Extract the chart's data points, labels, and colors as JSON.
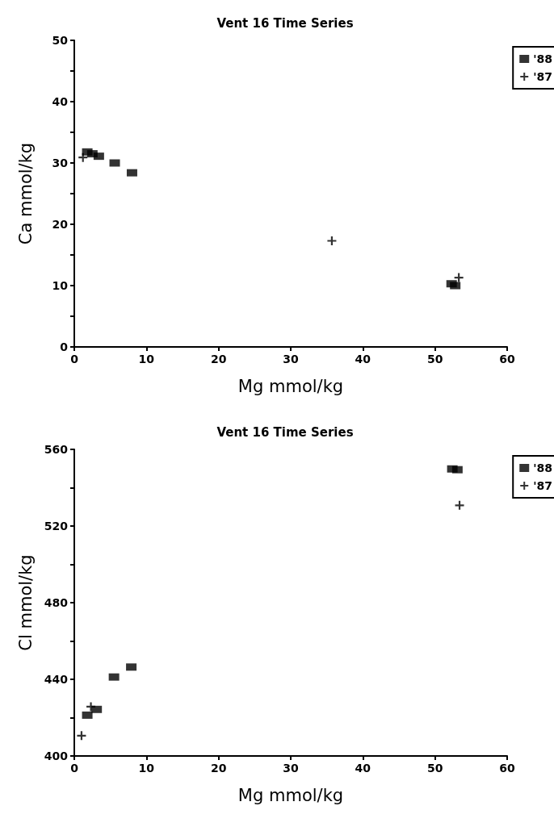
{
  "chart_data": [
    {
      "type": "scatter",
      "title": "Vent 16 Time Series",
      "xlabel": "Mg mmol/kg",
      "ylabel": "Ca mmol/kg",
      "xlim": [
        0,
        60
      ],
      "xticks": [
        0,
        10,
        20,
        30,
        40,
        50,
        60
      ],
      "ylim": [
        0,
        50
      ],
      "yticks": [
        0,
        {
          "value": 5,
          "label": null
        },
        10,
        {
          "value": 15,
          "label": null
        },
        20,
        {
          "value": 25,
          "label": null
        },
        30,
        {
          "value": 35,
          "label": null
        },
        40,
        {
          "value": 45,
          "label": null
        },
        50
      ],
      "legend": "right",
      "grid": false,
      "series": [
        {
          "name": "'88",
          "color": "#000000",
          "marker": "square",
          "x": [
            1.8,
            2.5,
            3.4,
            5.6,
            8.0,
            52.3,
            52.8
          ],
          "values": [
            31.8,
            31.5,
            31.1,
            30.0,
            28.4,
            10.3,
            10.0
          ]
        },
        {
          "name": "'87",
          "color": "#000000",
          "marker": "cross",
          "x": [
            1.2,
            35.7,
            53.3
          ],
          "values": [
            30.9,
            17.3,
            11.3
          ]
        }
      ]
    },
    {
      "type": "scatter",
      "title": "Vent 16 Time Series",
      "xlabel": "Mg mmol/kg",
      "ylabel": "Cl mmol/kg",
      "xlim": [
        0,
        60
      ],
      "xticks": [
        0,
        10,
        20,
        30,
        40,
        50,
        60
      ],
      "ylim": [
        400,
        560
      ],
      "yticks": [
        400,
        {
          "value": 420,
          "label": null
        },
        440,
        {
          "value": 460,
          "label": null
        },
        480,
        {
          "value": 500,
          "label": null
        },
        520,
        {
          "value": 540,
          "label": null
        },
        560
      ],
      "legend": "right",
      "grid": false,
      "series": [
        {
          "name": "'88",
          "color": "#000000",
          "marker": "square",
          "x": [
            1.8,
            3.1,
            5.5,
            7.9,
            52.4,
            53.1
          ],
          "values": [
            421.3,
            424.3,
            441.2,
            446.4,
            549.8,
            549.4
          ]
        },
        {
          "name": "'87",
          "color": "#000000",
          "marker": "cross",
          "x": [
            1.0,
            2.3,
            53.4
          ],
          "values": [
            410.6,
            425.7,
            530.8
          ]
        }
      ]
    }
  ]
}
